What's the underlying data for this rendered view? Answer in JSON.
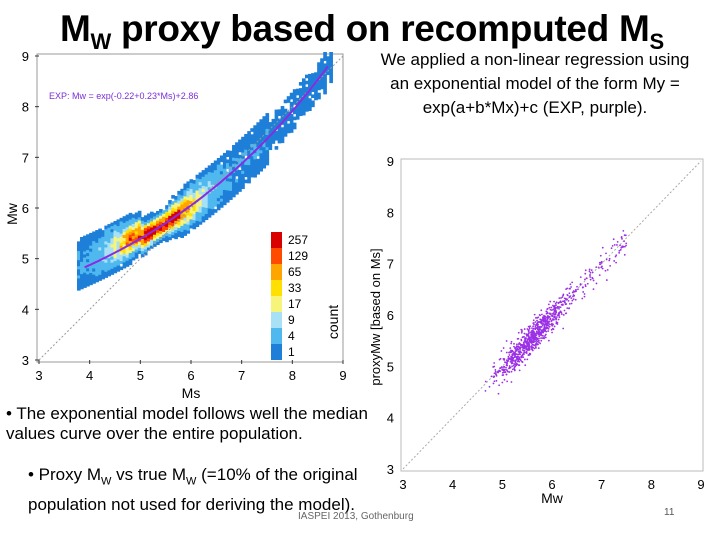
{
  "slide": {
    "title_main": "M",
    "title_sub_w": "W",
    "title_mid": " proxy based on recomputed M",
    "title_sub_s": "S",
    "note": "We applied a non-linear regression using an exponential model of the form My = exp(a+b*Mx)+c (EXP, purple).",
    "bullet1": "• The exponential model follows well the median values curve over the entire population.",
    "bullet2_a": "• Proxy M",
    "bullet2_sub1": "W",
    "bullet2_b": " vs true M",
    "bullet2_sub2": "W",
    "bullet2_c": " (=10% of the original population not used for deriving the model).",
    "footer": "IASPEI 2013, Gothenburg",
    "page_number": "11"
  },
  "chart_data": [
    {
      "type": "heatmap",
      "xlabel": "Ms",
      "ylabel": "Mw",
      "xlim": [
        3,
        9
      ],
      "ylim": [
        3,
        9
      ],
      "x_ticks": [
        "3",
        "4",
        "5",
        "6",
        "7",
        "8",
        "9"
      ],
      "y_ticks": [
        "3",
        "4",
        "5",
        "6",
        "7",
        "8",
        "9"
      ],
      "fit_label": "EXP: Mw = exp(-0.22+0.23*Ms)+2.86",
      "fit": {
        "a": -0.22,
        "b": 0.23,
        "c": 2.86,
        "x_range": [
          3.9,
          8.7
        ]
      },
      "colorbar_label": "count",
      "colorbar_ticks": [
        "257",
        "129",
        "65",
        "33",
        "17",
        "9",
        "4",
        "1"
      ],
      "colorbar_colors": [
        "#d90000",
        "#ff4a00",
        "#ffa500",
        "#ffe000",
        "#f6f57a",
        "#a8e0f5",
        "#4fb8ef",
        "#1e7fd8"
      ],
      "colors": {
        "fit_line": "#8a2be2",
        "label": "#7b2fd6"
      }
    },
    {
      "type": "scatter",
      "xlabel": "Mw",
      "ylabel": "proxyMw [based on Ms]",
      "xlim": [
        3,
        9
      ],
      "ylim": [
        3,
        9
      ],
      "x_ticks": [
        "3",
        "4",
        "5",
        "6",
        "7",
        "8",
        "9"
      ],
      "y_ticks": [
        "3",
        "4",
        "5",
        "6",
        "7",
        "8",
        "9"
      ],
      "colors": {
        "points": "#9b30e6",
        "diagonal": "#aaaaaa"
      }
    }
  ]
}
